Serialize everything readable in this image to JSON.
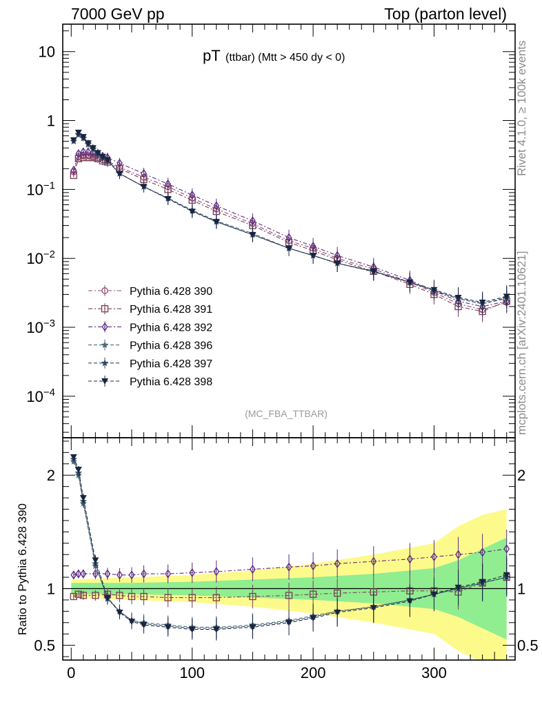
{
  "header": {
    "left": "7000 GeV pp",
    "right": "Top (parton level)"
  },
  "side_labels": {
    "rivet": "Rivet 4.1.0, ≥ 100k events",
    "mcplots": "mcplots.cern.ch [arXiv:2401.10621]"
  },
  "chart_data": [
    {
      "type": "scatter",
      "panel": "main",
      "title_main": "pT",
      "title_sub": "(ttbar) (Mtt > 450 dy < 0)",
      "watermark": "(MC_FBA_TTBAR)",
      "yscale": "log",
      "ylim": [
        2.5e-05,
        25
      ],
      "xlim": [
        -7,
        367
      ],
      "ytick_labels": [
        {
          "value": 10,
          "base": "10",
          "exp": ""
        },
        {
          "value": 1,
          "base": "1",
          "exp": ""
        },
        {
          "value": 0.1,
          "base": "10",
          "exp": "−1"
        },
        {
          "value": 0.01,
          "base": "10",
          "exp": "−2"
        },
        {
          "value": 0.001,
          "base": "10",
          "exp": "−3"
        },
        {
          "value": 0.0001,
          "base": "10",
          "exp": "−4"
        }
      ],
      "x": [
        2,
        6,
        10,
        14,
        18,
        22,
        26,
        30,
        40,
        60,
        80,
        100,
        120,
        150,
        180,
        200,
        220,
        250,
        280,
        300,
        320,
        340,
        360
      ],
      "series": [
        {
          "name": "Pythia 6.428 390",
          "marker": "circle",
          "color": "#8c4a6e",
          "dash": "6,3,2,3",
          "values": [
            0.18,
            0.3,
            0.31,
            0.31,
            0.3,
            0.29,
            0.27,
            0.26,
            0.21,
            0.15,
            0.11,
            0.075,
            0.052,
            0.032,
            0.018,
            0.014,
            0.01,
            0.007,
            0.0045,
            0.0032,
            0.0022,
            0.0018,
            0.0023
          ]
        },
        {
          "name": "Pythia 6.428 391",
          "marker": "square",
          "color": "#7a3a55",
          "dash": "6,3,2,3",
          "values": [
            0.16,
            0.28,
            0.29,
            0.29,
            0.29,
            0.28,
            0.26,
            0.25,
            0.2,
            0.14,
            0.1,
            0.07,
            0.048,
            0.03,
            0.017,
            0.013,
            0.0095,
            0.0065,
            0.0042,
            0.003,
            0.002,
            0.0017,
            0.0024
          ]
        },
        {
          "name": "Pythia 6.428 392",
          "marker": "diamond",
          "color": "#5e2a84",
          "dash": "6,3,2,3",
          "values": [
            0.19,
            0.33,
            0.35,
            0.35,
            0.34,
            0.32,
            0.3,
            0.29,
            0.24,
            0.17,
            0.12,
            0.083,
            0.058,
            0.035,
            0.02,
            0.015,
            0.011,
            0.0075,
            0.0048,
            0.0034,
            0.0024,
            0.002,
            0.0024
          ]
        },
        {
          "name": "Pythia 6.428 396",
          "marker": "star",
          "color": "#4a6b78",
          "dash": "5,3",
          "values": [
            0.5,
            0.62,
            0.55,
            0.45,
            0.38,
            0.33,
            0.29,
            0.26,
            0.17,
            0.11,
            0.075,
            0.05,
            0.035,
            0.023,
            0.014,
            0.011,
            0.0085,
            0.0065,
            0.0045,
            0.0034,
            0.0026,
            0.0022,
            0.0026
          ]
        },
        {
          "name": "Pythia 6.428 397",
          "marker": "star",
          "color": "#2d4a66",
          "dash": "5,3",
          "values": [
            0.5,
            0.63,
            0.56,
            0.46,
            0.39,
            0.33,
            0.29,
            0.26,
            0.17,
            0.11,
            0.074,
            0.049,
            0.034,
            0.022,
            0.014,
            0.011,
            0.0085,
            0.0064,
            0.0045,
            0.0034,
            0.0026,
            0.0022,
            0.0027
          ]
        },
        {
          "name": "Pythia 6.428 398",
          "marker": "triangle-down",
          "color": "#1a2540",
          "dash": "5,3",
          "values": [
            0.52,
            0.67,
            0.58,
            0.47,
            0.4,
            0.34,
            0.3,
            0.27,
            0.17,
            0.11,
            0.073,
            0.048,
            0.034,
            0.022,
            0.014,
            0.011,
            0.0085,
            0.0065,
            0.0045,
            0.0035,
            0.0027,
            0.0023,
            0.0028
          ]
        }
      ]
    },
    {
      "type": "line",
      "panel": "ratio",
      "ylabel": "Ratio to Pythia 6.428 390",
      "ylim": [
        0.37,
        2.33
      ],
      "xlim": [
        -7,
        367
      ],
      "xticks": [
        0,
        100,
        200,
        300
      ],
      "xtick_labels": [
        "0",
        "100",
        "200",
        "300"
      ],
      "yticks": [
        0.5,
        1,
        2
      ],
      "ytick_labels": [
        "0.5",
        "1",
        "2"
      ],
      "x": [
        2,
        6,
        10,
        20,
        30,
        40,
        50,
        60,
        80,
        100,
        120,
        150,
        180,
        200,
        220,
        250,
        280,
        300,
        320,
        340,
        360
      ],
      "band_x": [
        0,
        50,
        100,
        150,
        200,
        250,
        300,
        320,
        340,
        360
      ],
      "band_green": [
        0.05,
        0.05,
        0.06,
        0.08,
        0.1,
        0.13,
        0.18,
        0.25,
        0.35,
        0.45
      ],
      "band_yellow": [
        0.08,
        0.1,
        0.12,
        0.16,
        0.22,
        0.3,
        0.4,
        0.55,
        0.65,
        0.7
      ],
      "series": [
        {
          "name": "Pythia 6.428 391",
          "marker": "square",
          "color": "#7a3a55",
          "dash": "6,3,2,3",
          "values": [
            0.93,
            0.95,
            0.94,
            0.94,
            0.95,
            0.94,
            0.93,
            0.93,
            0.92,
            0.92,
            0.92,
            0.93,
            0.94,
            0.95,
            0.96,
            0.97,
            0.98,
            0.98,
            0.97,
            1.05,
            1.1
          ]
        },
        {
          "name": "Pythia 6.428 392",
          "marker": "diamond",
          "color": "#5e2a84",
          "dash": "6,3,2,3",
          "values": [
            1.12,
            1.13,
            1.13,
            1.13,
            1.13,
            1.12,
            1.12,
            1.13,
            1.13,
            1.14,
            1.15,
            1.17,
            1.19,
            1.2,
            1.22,
            1.24,
            1.26,
            1.28,
            1.3,
            1.32,
            1.35
          ]
        },
        {
          "name": "Pythia 6.428 396",
          "marker": "star",
          "color": "#4a6b78",
          "dash": "5,3",
          "values": [
            2.12,
            2.0,
            1.75,
            1.2,
            0.92,
            0.8,
            0.72,
            0.7,
            0.68,
            0.66,
            0.66,
            0.68,
            0.72,
            0.76,
            0.8,
            0.84,
            0.9,
            0.95,
            1.0,
            1.05,
            1.1
          ]
        },
        {
          "name": "Pythia 6.428 397",
          "marker": "star",
          "color": "#2d4a66",
          "dash": "5,3",
          "values": [
            2.14,
            2.02,
            1.77,
            1.22,
            0.91,
            0.8,
            0.72,
            0.69,
            0.67,
            0.65,
            0.65,
            0.67,
            0.71,
            0.75,
            0.8,
            0.84,
            0.9,
            0.95,
            1.0,
            1.05,
            1.1
          ]
        },
        {
          "name": "Pythia 6.428 398",
          "marker": "triangle-down",
          "color": "#1a2540",
          "dash": "5,3",
          "values": [
            2.16,
            2.05,
            1.8,
            1.25,
            0.92,
            0.79,
            0.71,
            0.68,
            0.66,
            0.64,
            0.64,
            0.66,
            0.7,
            0.74,
            0.79,
            0.83,
            0.89,
            0.95,
            1.01,
            1.06,
            1.12
          ]
        }
      ]
    }
  ]
}
